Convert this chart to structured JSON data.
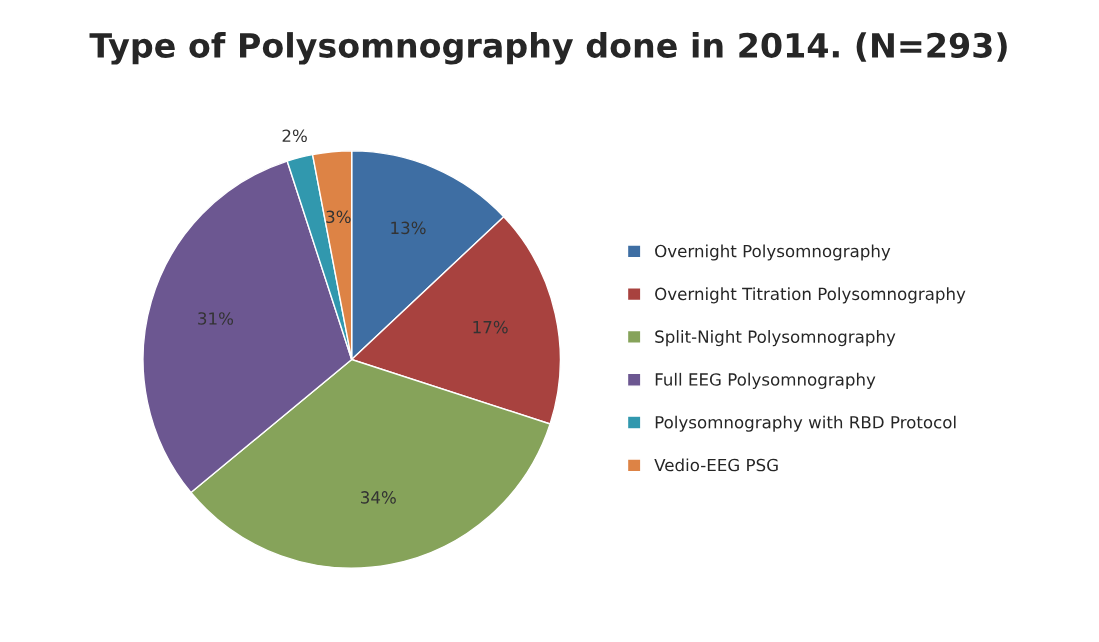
{
  "chart_data": {
    "type": "pie",
    "title": "Type of Polysomnography done in 2014. (N=293)",
    "categories": [
      "Overnight Polysomnography",
      "Overnight Titration Polysomnography",
      "Split-Night Polysomnography",
      "Full EEG Polysomnography",
      "Polysomnography with RBD Protocol",
      "Vedio-EEG PSG"
    ],
    "values": [
      13,
      17,
      34,
      31,
      2,
      3
    ],
    "value_labels": [
      "13%",
      "17%",
      "34%",
      "31%",
      "2%",
      "3%"
    ],
    "colors": [
      "#3e6ea3",
      "#a8423f",
      "#86a35a",
      "#6c5791",
      "#3198ae",
      "#dd8345"
    ],
    "legend": "right"
  }
}
